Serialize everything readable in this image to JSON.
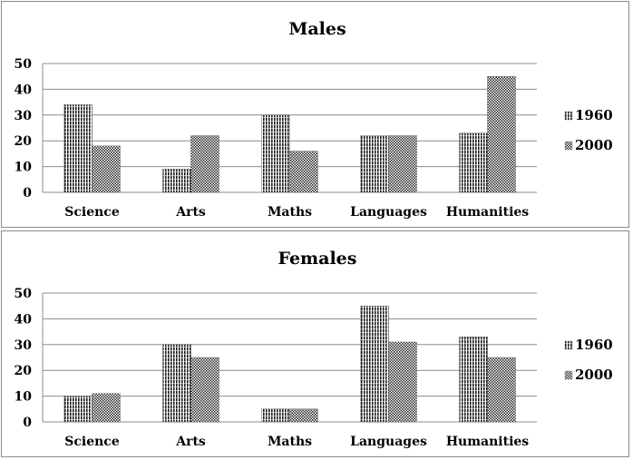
{
  "chart_data": [
    {
      "type": "bar",
      "title": "Males",
      "categories": [
        "Science",
        "Arts",
        "Maths",
        "Languages",
        "Humanities"
      ],
      "series": [
        {
          "name": "1960",
          "values": [
            34,
            9,
            30,
            22,
            23
          ]
        },
        {
          "name": "2000",
          "values": [
            18,
            22,
            16,
            22,
            45
          ]
        }
      ],
      "ylim": [
        0,
        50
      ],
      "yticks": [
        0,
        10,
        20,
        30,
        40,
        50
      ],
      "grid": true,
      "legend": "right"
    },
    {
      "type": "bar",
      "title": "Females",
      "categories": [
        "Science",
        "Arts",
        "Maths",
        "Languages",
        "Humanities"
      ],
      "series": [
        {
          "name": "1960",
          "values": [
            10,
            30,
            5,
            45,
            33
          ]
        },
        {
          "name": "2000",
          "values": [
            11,
            25,
            5,
            31,
            25
          ]
        }
      ],
      "ylim": [
        0,
        50
      ],
      "yticks": [
        0,
        10,
        20,
        30,
        40,
        50
      ],
      "grid": true,
      "legend": "right"
    }
  ]
}
